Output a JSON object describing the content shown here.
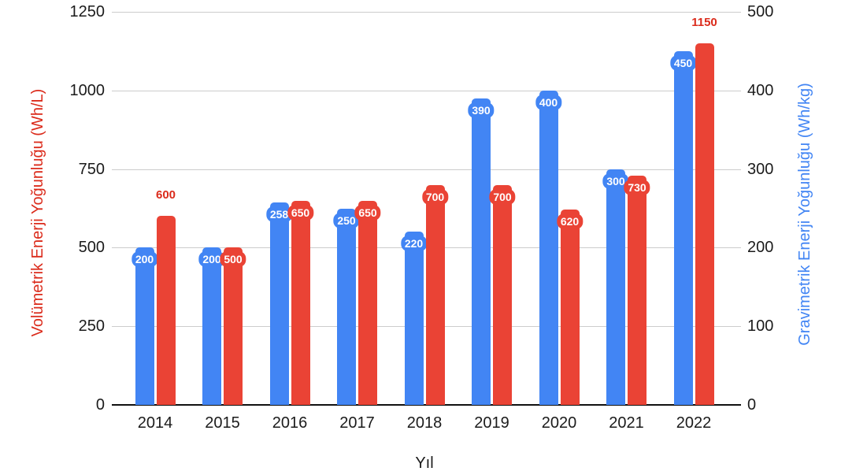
{
  "chart_data": {
    "type": "bar",
    "title": "",
    "categories": [
      "2014",
      "2015",
      "2016",
      "2017",
      "2018",
      "2019",
      "2020",
      "2021",
      "2022"
    ],
    "series": [
      {
        "name": "Gravimetrik Enerji Yoğunluğu (Wh/kg)",
        "slug": "gravimetric",
        "axis": "right",
        "color": "#4285F4",
        "values": [
          200,
          200,
          258,
          250,
          220,
          390,
          400,
          300,
          450
        ],
        "label_positions": [
          "inside",
          "inside",
          "inside",
          "inside",
          "inside",
          "inside",
          "inside",
          "inside",
          "inside"
        ]
      },
      {
        "name": "Volümetrik Enerji Yoğunluğu (Wh/L)",
        "slug": "volumetric",
        "axis": "left",
        "color": "#EA4335",
        "label_color": "#DB2B1B",
        "values": [
          600,
          500,
          650,
          650,
          700,
          700,
          620,
          730,
          1150
        ],
        "label_positions": [
          "above",
          "inside",
          "inside",
          "inside",
          "inside",
          "inside",
          "inside",
          "inside",
          "above"
        ]
      }
    ],
    "xlabel": "Yıl",
    "left_axis": {
      "title": "Volümetrik Enerji Yoğunluğu (Wh/L)",
      "color": "#DB2B1B",
      "ticks": [
        0,
        250,
        500,
        750,
        1000,
        1250
      ],
      "max": 1250
    },
    "right_axis": {
      "title": "Gravimetrik Enerji Yoğunluğu (Wh/kg)",
      "color": "#4285F4",
      "ticks": [
        0,
        100,
        200,
        300,
        400,
        500
      ],
      "max": 500
    },
    "grid": true,
    "legend_position": "none",
    "background": "#FFFFFF",
    "gridline_color": "#CCCCCC",
    "axis_line_color": "#111111",
    "tick_label_color": "#1B1B1B"
  }
}
